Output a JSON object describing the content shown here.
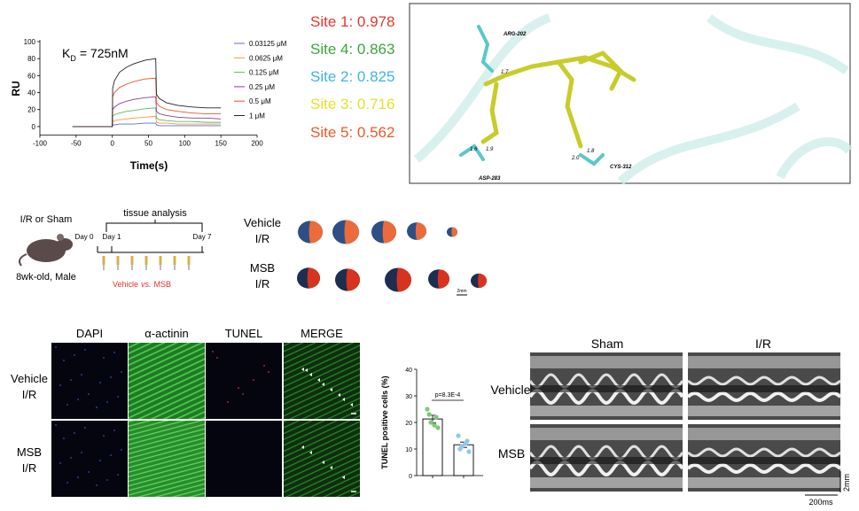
{
  "chart_data": [
    {
      "type": "line",
      "xlabel": "Time(s)",
      "ylabel": "RU",
      "annotation": {
        "symbol": "K",
        "subscript": "D",
        "text": "= 725nM"
      },
      "x": [
        -55,
        0,
        0.5,
        3,
        10,
        20,
        30,
        45,
        60,
        61,
        65,
        75,
        90,
        110,
        130,
        150
      ],
      "series": [
        {
          "name": "0.03125 μM",
          "color": "#5b6fd6",
          "values": [
            0,
            0,
            2,
            2,
            3,
            3,
            3,
            4,
            4,
            2,
            1,
            1,
            1,
            1,
            1,
            1
          ]
        },
        {
          "name": "0.0625 μM",
          "color": "#f29b38",
          "values": [
            0,
            0,
            6,
            7,
            8,
            9,
            10,
            11,
            12,
            5,
            4,
            4,
            3,
            3,
            3,
            3
          ]
        },
        {
          "name": "0.125 μM",
          "color": "#5cb85c",
          "values": [
            0,
            0,
            12,
            14,
            16,
            18,
            19,
            21,
            22,
            10,
            8,
            7,
            6,
            6,
            5,
            5
          ]
        },
        {
          "name": "0.25 μM",
          "color": "#8a3a9a",
          "values": [
            0,
            0,
            20,
            23,
            27,
            30,
            32,
            34,
            35,
            18,
            15,
            13,
            11,
            10,
            10,
            9
          ]
        },
        {
          "name": "0.5 μM",
          "color": "#e8552e",
          "values": [
            0,
            0,
            35,
            40,
            46,
            50,
            53,
            56,
            57,
            28,
            24,
            20,
            18,
            16,
            15,
            15
          ]
        },
        {
          "name": "1 μM",
          "color": "#222222",
          "values": [
            0,
            0,
            45,
            54,
            64,
            70,
            74,
            78,
            80,
            38,
            33,
            28,
            25,
            23,
            22,
            22
          ]
        }
      ],
      "xlim": [
        -100,
        200
      ],
      "xticks": [
        -100,
        -50,
        0,
        50,
        100,
        150,
        200
      ],
      "ylim": [
        -10,
        100
      ],
      "yticks": [
        0,
        20,
        40,
        60,
        80,
        100
      ]
    },
    {
      "type": "bar",
      "ylabel": "TUNEL positive cells (%)",
      "annotation": "p=8.3E-4",
      "categories": [
        null,
        null
      ],
      "values": [
        21.3,
        11.6
      ],
      "errors": [
        1.4,
        1.0
      ],
      "point_colors": [
        "#7dc87a",
        "#8ec9e6"
      ],
      "points": [
        [
          25,
          22,
          20,
          18,
          23,
          19
        ],
        [
          15,
          13,
          11,
          9,
          10,
          12
        ]
      ],
      "ylim": [
        0,
        40
      ],
      "yticks": [
        0,
        10,
        20,
        30,
        40
      ]
    }
  ],
  "docking": {
    "sites": [
      {
        "label": "Site 1: 0.978",
        "color": "#e8362b"
      },
      {
        "label": "Site 4: 0.863",
        "color": "#3aa63a"
      },
      {
        "label": "Site 2: 0.825",
        "color": "#3fb4e0"
      },
      {
        "label": "Site 3: 0.716",
        "color": "#e2e22a"
      },
      {
        "label": "Site 5: 0.562",
        "color": "#ea5a2a"
      }
    ],
    "residues": [
      "ARG-202",
      "ASP-283",
      "CYS-312"
    ],
    "distances": [
      "1.7",
      "1.6",
      "1.9",
      "1.8",
      "2.0"
    ]
  },
  "protocol": {
    "surgery": "I/R or Sham",
    "analysis": "tissue analysis",
    "days": [
      "Day 0",
      "Day 1",
      "Day 7"
    ],
    "mouse": "8wk-old, Male",
    "treatment": [
      "Vehicle",
      "vs.",
      "MSB"
    ]
  },
  "hearts": {
    "rows": [
      [
        "Vehicle",
        "I/R"
      ],
      [
        "MSB",
        "I/R"
      ]
    ],
    "scale": "2mm"
  },
  "staining": {
    "columns": [
      "DAPI",
      "α-actinin",
      "TUNEL",
      "MERGE"
    ],
    "rows": [
      [
        "Vehicle",
        "I/R"
      ],
      [
        "MSB",
        "I/R"
      ]
    ]
  },
  "echo": {
    "columns": [
      "Sham",
      "I/R"
    ],
    "rows": [
      "Vehicle",
      "MSB"
    ],
    "scale_y": "2mm",
    "scale_x": "200ms"
  }
}
